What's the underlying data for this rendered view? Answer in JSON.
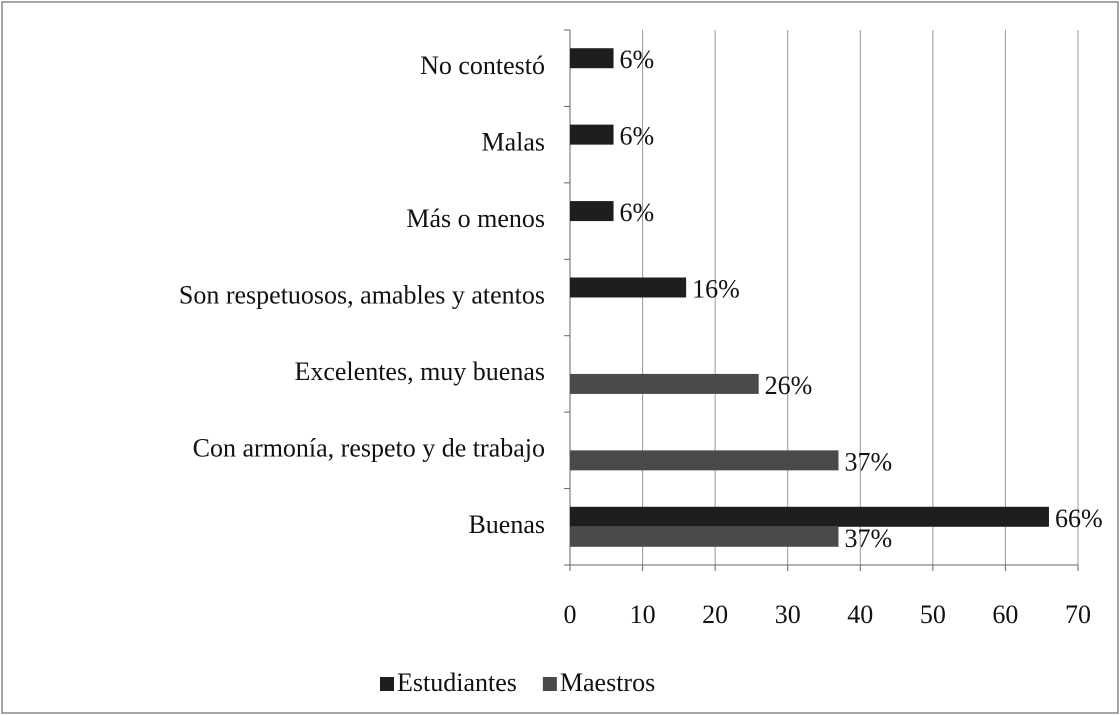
{
  "chart_data": {
    "type": "hbar",
    "categories": [
      "No contestó",
      "Malas",
      "Más o menos",
      "Son respetuosos, amables y atentos",
      "Excelentes, muy buenas",
      "Con armonía, respeto y de trabajo",
      "Buenas"
    ],
    "series": [
      {
        "name": "Estudiantes",
        "color": "#1e1e1e",
        "values": [
          6,
          6,
          6,
          16,
          null,
          null,
          66
        ],
        "value_labels": [
          "6%",
          "6%",
          "6%",
          "16%",
          null,
          null,
          "66%"
        ]
      },
      {
        "name": "Maestros",
        "color": "#4a4a4a",
        "values": [
          null,
          null,
          null,
          null,
          26,
          37,
          37
        ],
        "value_labels": [
          null,
          null,
          null,
          null,
          "26%",
          "37%",
          "37%"
        ]
      }
    ],
    "xlim": [
      0,
      70
    ],
    "xticks": [
      0,
      10,
      20,
      30,
      40,
      50,
      60,
      70
    ],
    "grid": true,
    "legend": "bottom"
  }
}
